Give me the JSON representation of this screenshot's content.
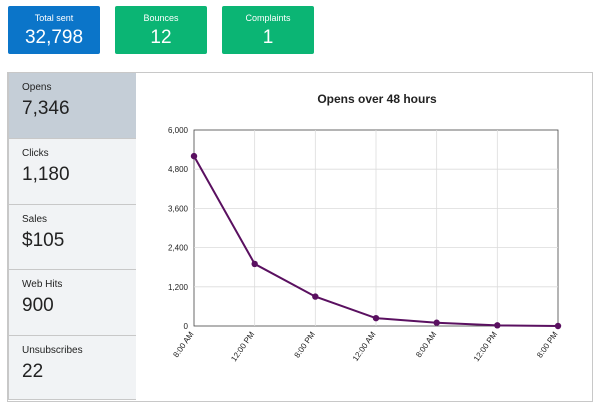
{
  "top_stats": [
    {
      "label": "Total sent",
      "value": "32,798",
      "color": "#0b75c9"
    },
    {
      "label": "Bounces",
      "value": "12",
      "color": "#0bb574"
    },
    {
      "label": "Complaints",
      "value": "1",
      "color": "#0bb574"
    }
  ],
  "metrics": [
    {
      "label": "Opens",
      "value": "7,346",
      "active": true
    },
    {
      "label": "Clicks",
      "value": "1,180"
    },
    {
      "label": "Sales",
      "value": "$105"
    },
    {
      "label": "Web Hits",
      "value": "900"
    },
    {
      "label": "Unsubscribes",
      "value": "22"
    }
  ],
  "chart_data": {
    "type": "line",
    "title": "Opens over 48 hours",
    "x": [
      "8:00 AM",
      "12:00 PM",
      "8:00 PM",
      "12:00 AM",
      "8:00 AM",
      "12:00 PM",
      "8:00 PM"
    ],
    "series": [
      {
        "values": [
          5200,
          1900,
          900,
          240,
          100,
          20,
          0
        ],
        "color": "#5a1060"
      }
    ],
    "y_ticks": [
      "0",
      "1,200",
      "2,400",
      "3,600",
      "4,800",
      "6,000"
    ],
    "ylim": [
      0,
      6000
    ],
    "grid": true,
    "legend": "none"
  }
}
